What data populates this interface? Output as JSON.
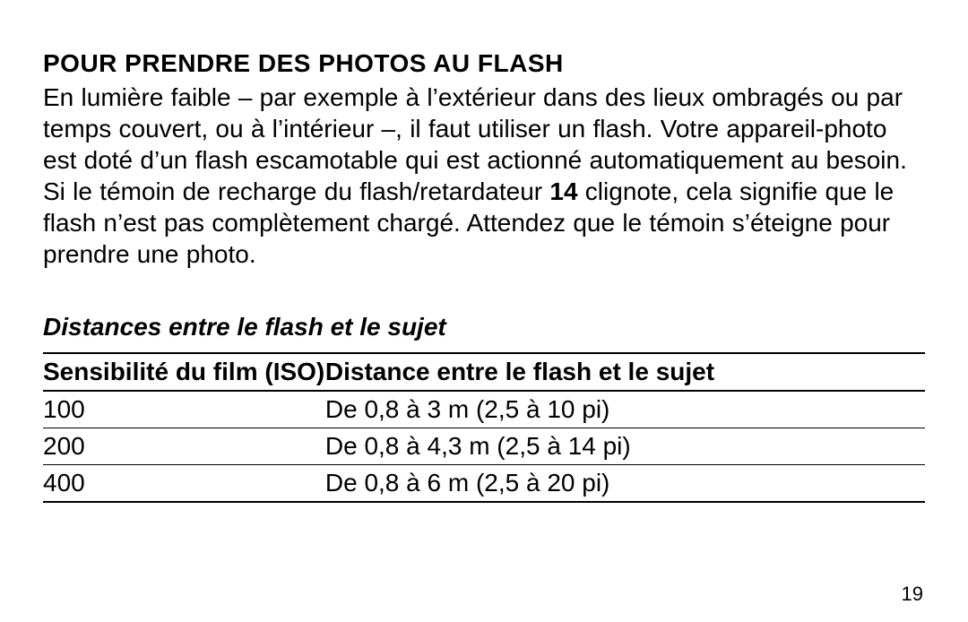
{
  "heading": "POUR PRENDRE DES PHOTOS AU FLASH",
  "body": {
    "part1": "En lumière faible – par exemple à l’extérieur dans des lieux ombragés ou par temps couvert, ou à l’intérieur –, il faut utiliser un flash. Votre appareil-photo est doté d’un flash escamotable qui est actionné automatiquement au besoin. Si le témoin de recharge du flash/retardateur ",
    "bold_ref": "14",
    "part2": " clignote, cela signifie que le flash n’est pas complètement chargé. Attendez que le témoin s’éteigne pour prendre une photo."
  },
  "subheading": "Distances entre le flash et le sujet",
  "table": {
    "columns": [
      "Sensibilité du film (ISO)",
      "Distance entre le flash et le sujet"
    ],
    "rows": [
      [
        "100",
        "De 0,8 à 3 m (2,5 à 10 pi)"
      ],
      [
        "200",
        "De 0,8 à 4,3 m (2,5 à 14 pi)"
      ],
      [
        "400",
        "De 0,8 à 6 m (2,5 à 20 pi)"
      ]
    ]
  },
  "page_number": "19"
}
